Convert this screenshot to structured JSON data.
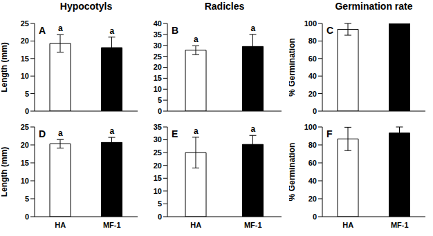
{
  "chart_data": [
    {
      "type": "bar",
      "title": "A",
      "subtitle": "Hypocotyls",
      "y_label": "Length (mm)",
      "categories": [
        "HA",
        "MF-1"
      ],
      "values": [
        19.3,
        18.1
      ],
      "errors": [
        2.5,
        3.0
      ],
      "letters": [
        "a",
        "a"
      ],
      "colors": [
        "#ffffff",
        "#000000"
      ],
      "ylim": [
        0,
        25
      ],
      "yticks": [
        0,
        5,
        10,
        15,
        20,
        25
      ],
      "tick_labels": "y"
    },
    {
      "type": "bar",
      "title": "B",
      "subtitle": "Radicles",
      "categories": [
        "HA",
        "MF-1"
      ],
      "values": [
        27.8,
        29.5
      ],
      "errors": [
        2.0,
        5.5
      ],
      "letters": [
        "a",
        "a"
      ],
      "colors": [
        "#ffffff",
        "#000000"
      ],
      "ylim": [
        0,
        40
      ],
      "yticks": [
        0,
        5,
        10,
        15,
        20,
        25,
        30,
        35,
        40
      ],
      "tick_labels": "y"
    },
    {
      "type": "bar",
      "title": "C",
      "subtitle": "Germination rate",
      "y_label": "% Germination",
      "categories": [
        "HA",
        "MF-1"
      ],
      "values": [
        93.3,
        100
      ],
      "errors": [
        6.7,
        0
      ],
      "letters": [
        "a",
        "a"
      ],
      "colors": [
        "#ffffff",
        "#000000"
      ],
      "ylim": [
        0,
        100
      ],
      "yticks": [
        0,
        20,
        40,
        60,
        80,
        100
      ],
      "tick_labels": "y"
    },
    {
      "type": "bar",
      "title": "D",
      "y_label": "Length (mm)",
      "categories": [
        "HA",
        "MF-1"
      ],
      "values": [
        20.3,
        20.7
      ],
      "errors": [
        1.2,
        1.4
      ],
      "letters": [
        "a",
        "a"
      ],
      "colors": [
        "#ffffff",
        "#000000"
      ],
      "ylim": [
        0,
        25
      ],
      "yticks": [
        0,
        5,
        10,
        15,
        20,
        25
      ]
    },
    {
      "type": "bar",
      "title": "E",
      "categories": [
        "HA",
        "MF-1"
      ],
      "values": [
        25.0,
        28.2
      ],
      "errors": [
        6.0,
        3.5
      ],
      "letters": [
        "a",
        "a"
      ],
      "colors": [
        "#ffffff",
        "#000000"
      ],
      "ylim": [
        0,
        35
      ],
      "yticks": [
        0,
        5,
        10,
        15,
        20,
        25,
        30,
        35
      ]
    },
    {
      "type": "bar",
      "title": "F",
      "y_label": "% Germination",
      "categories": [
        "HA",
        "MF-1"
      ],
      "values": [
        86.7,
        93.3
      ],
      "errors": [
        13.0,
        6.7
      ],
      "letters": [
        "a",
        "a"
      ],
      "colors": [
        "#ffffff",
        "#000000"
      ],
      "ylim": [
        0,
        100
      ],
      "yticks": [
        0,
        20,
        40,
        60,
        80,
        100
      ]
    }
  ]
}
